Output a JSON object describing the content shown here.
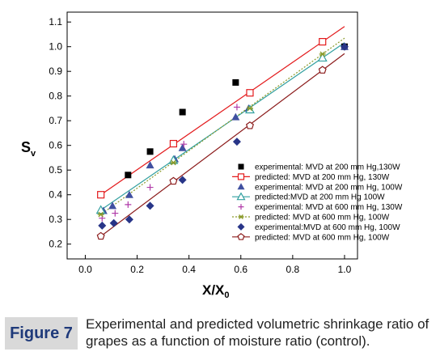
{
  "chart_data": {
    "type": "scatter",
    "xlabel": "X/X",
    "xlabel_sub": "0",
    "ylabel": "S",
    "ylabel_sub": "v",
    "xlim": [
      -0.07,
      1.05
    ],
    "ylim": [
      0.14,
      1.14
    ],
    "xticks": [
      "0.0",
      "0.2",
      "0.4",
      "0.6",
      "0.8",
      "1.0"
    ],
    "xtick_values": [
      0,
      0.2,
      0.4,
      0.6,
      0.8,
      1.0
    ],
    "yticks": [
      "0.2",
      "0.3",
      "0.4",
      "0.5",
      "0.6",
      "0.7",
      "0.8",
      "0.9",
      "1.0",
      "1.1"
    ],
    "ytick_values": [
      0.2,
      0.3,
      0.4,
      0.5,
      0.6,
      0.7,
      0.8,
      0.9,
      1.0,
      1.1
    ],
    "legend_position": "right",
    "series": [
      {
        "name": "experimental: MVD at 200 mm Hg,130W",
        "marker": "square-filled",
        "color": "#000000",
        "line": false,
        "x": [
          0.165,
          0.25,
          0.375,
          0.58,
          1.0
        ],
        "y": [
          0.48,
          0.575,
          0.735,
          0.855,
          1.0
        ]
      },
      {
        "name": "predicted: MVD at 200 mm Hg, 130W",
        "marker": "square-open",
        "color": "#e31a1c",
        "line": true,
        "x": [
          0.06,
          0.34,
          0.635,
          0.915
        ],
        "y": [
          0.4,
          0.607,
          0.813,
          1.02
        ]
      },
      {
        "name": "experimental: MVD at 200 mm Hg, 100W",
        "marker": "triangle-filled",
        "color": "#4050a0",
        "line": false,
        "x": [
          0.07,
          0.105,
          0.17,
          0.25,
          0.345,
          0.375,
          0.58,
          0.63,
          1.0
        ],
        "y": [
          0.335,
          0.355,
          0.4,
          0.52,
          0.545,
          0.59,
          0.715,
          0.75,
          1.0
        ]
      },
      {
        "name": "predicted:MVD at 200 mm Hg 100W",
        "marker": "triangle-open",
        "color": "#33a0a0",
        "line": true,
        "x": [
          0.06,
          0.34,
          0.635,
          0.915
        ],
        "y": [
          0.338,
          0.54,
          0.745,
          0.955
        ]
      },
      {
        "name": "experimental: MVD at 600 mm Hg, 130W",
        "marker": "plus",
        "color": "#b03aa8",
        "line": false,
        "x": [
          0.065,
          0.115,
          0.165,
          0.25,
          0.38,
          0.585,
          1.0
        ],
        "y": [
          0.305,
          0.325,
          0.36,
          0.43,
          0.605,
          0.755,
          1.0
        ]
      },
      {
        "name": "predicted: MVD at 600 mm Hg, 100W",
        "marker": "asterisk",
        "color": "#8a9a2a",
        "line": true,
        "dotted": true,
        "x": [
          0.06,
          0.34,
          0.635,
          0.915
        ],
        "y": [
          0.32,
          0.53,
          0.75,
          0.97
        ]
      },
      {
        "name": "experimental:MVD at 600 mm Hg, 100W",
        "marker": "diamond-filled",
        "color": "#283588",
        "line": false,
        "x": [
          0.065,
          0.11,
          0.17,
          0.25,
          0.375,
          0.585,
          1.0
        ],
        "y": [
          0.275,
          0.285,
          0.3,
          0.355,
          0.46,
          0.615,
          1.0
        ]
      },
      {
        "name": "predicted: MVD at 600 mm Hg, 100W",
        "marker": "pentagon-open",
        "color": "#8b1a1a",
        "line": true,
        "x": [
          0.06,
          0.34,
          0.635,
          0.915
        ],
        "y": [
          0.232,
          0.455,
          0.68,
          0.905
        ]
      }
    ]
  },
  "caption": {
    "label": "Figure 7",
    "text": "Experimental and predicted volumetric shrinkage ratio of grapes as a function of moisture ratio (control)."
  }
}
